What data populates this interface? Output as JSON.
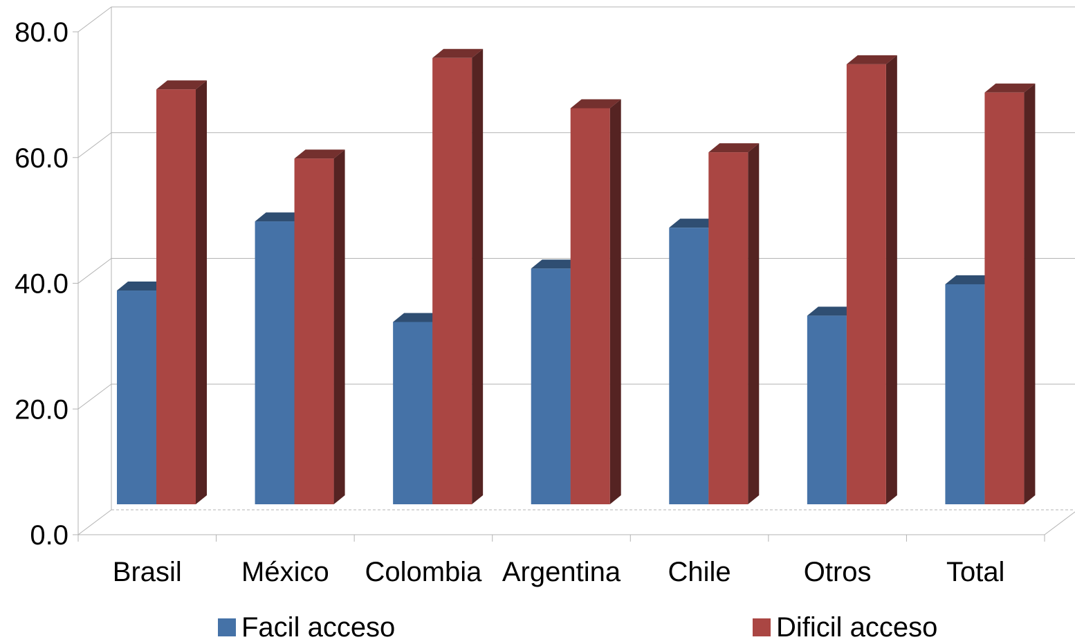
{
  "chart_data": {
    "type": "bar",
    "title": "",
    "xlabel": "",
    "ylabel": "",
    "ylim": [
      0,
      80
    ],
    "y_ticks": [
      "0.0",
      "20.0",
      "40.0",
      "60.0",
      "80.0"
    ],
    "grid": true,
    "legend_position": "bottom",
    "categories": [
      "Brasil",
      "México",
      "Colombia",
      "Argentina",
      "Chile",
      "Otros",
      "Total"
    ],
    "series": [
      {
        "name": "Facil acceso",
        "color": "#4572a7",
        "values": [
          34.0,
          45.0,
          29.0,
          37.5,
          44.0,
          30.0,
          35.0
        ]
      },
      {
        "name": "Dificil acceso",
        "color": "#aa4643",
        "values": [
          66.0,
          55.0,
          71.0,
          63.0,
          56.0,
          70.0,
          65.5
        ]
      }
    ]
  }
}
